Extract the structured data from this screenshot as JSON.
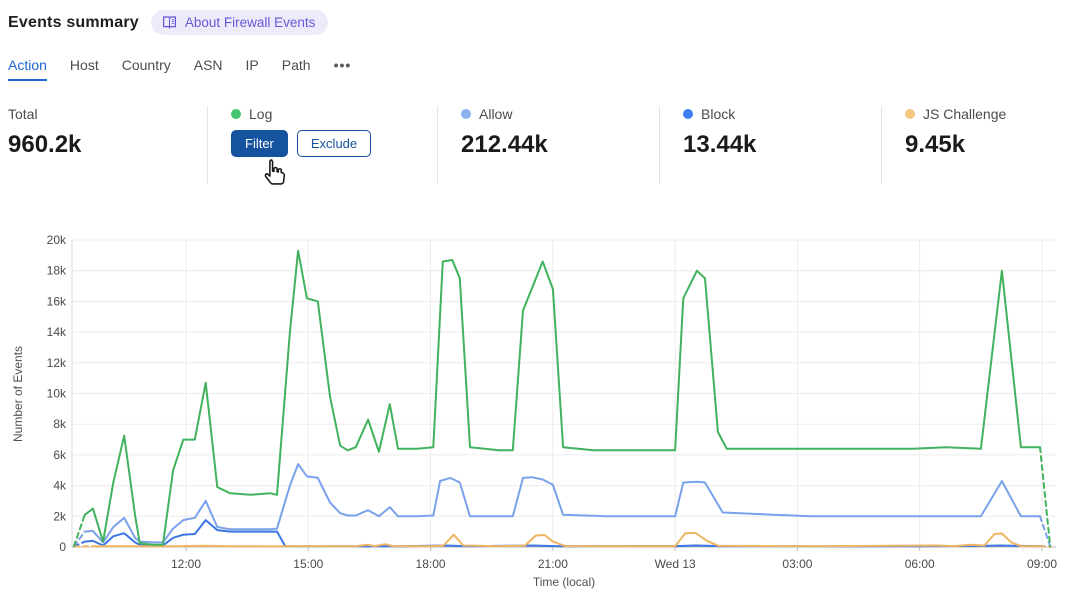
{
  "header": {
    "title": "Events summary",
    "about_label": "About Firewall Events"
  },
  "tabs": {
    "items": [
      "Action",
      "Host",
      "Country",
      "ASN",
      "IP",
      "Path"
    ],
    "active": "Action",
    "overflow": "•••"
  },
  "stats": {
    "total": {
      "label": "Total",
      "value": "960.2k"
    },
    "cards": [
      {
        "name": "Log",
        "color": "#46c46e",
        "hovered": true,
        "actions": {
          "filter": "Filter",
          "exclude": "Exclude"
        }
      },
      {
        "name": "Allow",
        "color": "#8ab2ef",
        "value": "212.44k"
      },
      {
        "name": "Block",
        "color": "#3b82f0",
        "value": "13.44k"
      },
      {
        "name": "JS Challenge",
        "color": "#f5c67e",
        "value": "9.45k"
      }
    ]
  },
  "colors": {
    "accent_blue": "#16539e",
    "tab_active": "#2065d1",
    "badge_purple": "#6459d6"
  },
  "chart_data": {
    "type": "line",
    "title": "",
    "xlabel": "Time (local)",
    "ylabel": "Number of Events",
    "x_unit": "minutes after Tue 09:00 (local); data interval ≈ 15 min",
    "y_unit": "thousands of events (k)",
    "ylim_k": [
      0,
      20
    ],
    "grid": true,
    "legend_position": "stat-cards-above",
    "dashed_edges": "first and last segment of each series are dashed (partial intervals)",
    "y_ticks": [
      {
        "label": "0",
        "v": 0
      },
      {
        "label": "2k",
        "v": 2
      },
      {
        "label": "4k",
        "v": 4
      },
      {
        "label": "6k",
        "v": 6
      },
      {
        "label": "8k",
        "v": 8
      },
      {
        "label": "10k",
        "v": 10
      },
      {
        "label": "12k",
        "v": 12
      },
      {
        "label": "14k",
        "v": 14
      },
      {
        "label": "16k",
        "v": 16
      },
      {
        "label": "18k",
        "v": 18
      },
      {
        "label": "20k",
        "v": 20
      }
    ],
    "x_ticks": [
      {
        "label": "12:00",
        "min": 180
      },
      {
        "label": "15:00",
        "min": 360
      },
      {
        "label": "18:00",
        "min": 540
      },
      {
        "label": "21:00",
        "min": 720
      },
      {
        "label": "Wed 13",
        "min": 900
      },
      {
        "label": "03:00",
        "min": 1080
      },
      {
        "label": "06:00",
        "min": 1260
      },
      {
        "label": "09:00",
        "min": 1440
      }
    ],
    "series": [
      {
        "name": "Log",
        "color": "#41b25d",
        "z": 4,
        "points_min_k": [
          [
            15,
            0.05
          ],
          [
            31,
            2.1
          ],
          [
            43,
            2.5
          ],
          [
            58,
            0.35
          ],
          [
            73,
            4.2
          ],
          [
            89,
            7.25
          ],
          [
            105,
            2.1
          ],
          [
            112,
            0.25
          ],
          [
            130,
            0.15
          ],
          [
            146,
            0.15
          ],
          [
            161,
            5.0
          ],
          [
            176,
            7.0
          ],
          [
            193,
            7.0
          ],
          [
            209,
            10.7
          ],
          [
            226,
            3.9
          ],
          [
            245,
            3.5
          ],
          [
            275,
            3.4
          ],
          [
            304,
            3.5
          ],
          [
            314,
            3.4
          ],
          [
            333,
            14.0
          ],
          [
            345,
            19.3
          ],
          [
            358,
            16.2
          ],
          [
            374,
            16.0
          ],
          [
            392,
            9.8
          ],
          [
            407,
            6.6
          ],
          [
            418,
            6.3
          ],
          [
            430,
            6.5
          ],
          [
            448,
            8.3
          ],
          [
            464,
            6.2
          ],
          [
            480,
            9.3
          ],
          [
            492,
            6.4
          ],
          [
            520,
            6.4
          ],
          [
            544,
            6.5
          ],
          [
            558,
            18.6
          ],
          [
            572,
            18.7
          ],
          [
            583,
            17.5
          ],
          [
            598,
            6.5
          ],
          [
            620,
            6.4
          ],
          [
            640,
            6.3
          ],
          [
            661,
            6.3
          ],
          [
            676,
            15.4
          ],
          [
            705,
            18.6
          ],
          [
            720,
            16.8
          ],
          [
            735,
            6.5
          ],
          [
            780,
            6.3
          ],
          [
            840,
            6.3
          ],
          [
            900,
            6.3
          ],
          [
            912,
            16.2
          ],
          [
            932,
            18.0
          ],
          [
            944,
            17.5
          ],
          [
            963,
            7.5
          ],
          [
            976,
            6.4
          ],
          [
            1050,
            6.4
          ],
          [
            1150,
            6.4
          ],
          [
            1250,
            6.4
          ],
          [
            1299,
            6.5
          ],
          [
            1350,
            6.4
          ],
          [
            1381,
            18.0
          ],
          [
            1409,
            6.5
          ],
          [
            1437,
            6.5
          ],
          [
            1452,
            0.05
          ]
        ]
      },
      {
        "name": "Allow",
        "color": "#7aa2ea",
        "z": 1,
        "points_min_k": [
          [
            15,
            0.05
          ],
          [
            31,
            1.0
          ],
          [
            43,
            1.05
          ],
          [
            58,
            0.3
          ],
          [
            73,
            1.3
          ],
          [
            89,
            1.9
          ],
          [
            105,
            0.6
          ],
          [
            112,
            0.35
          ],
          [
            130,
            0.3
          ],
          [
            146,
            0.3
          ],
          [
            161,
            1.2
          ],
          [
            176,
            1.75
          ],
          [
            193,
            1.9
          ],
          [
            209,
            3.0
          ],
          [
            226,
            1.3
          ],
          [
            245,
            1.15
          ],
          [
            304,
            1.15
          ],
          [
            314,
            1.2
          ],
          [
            333,
            4.0
          ],
          [
            345,
            5.4
          ],
          [
            358,
            4.6
          ],
          [
            374,
            4.5
          ],
          [
            392,
            2.9
          ],
          [
            407,
            2.2
          ],
          [
            418,
            2.05
          ],
          [
            430,
            2.05
          ],
          [
            448,
            2.4
          ],
          [
            464,
            2.0
          ],
          [
            480,
            2.6
          ],
          [
            492,
            2.0
          ],
          [
            520,
            2.0
          ],
          [
            544,
            2.05
          ],
          [
            554,
            4.3
          ],
          [
            569,
            4.5
          ],
          [
            583,
            4.2
          ],
          [
            598,
            2.0
          ],
          [
            640,
            2.0
          ],
          [
            661,
            2.0
          ],
          [
            676,
            4.5
          ],
          [
            689,
            4.55
          ],
          [
            705,
            4.4
          ],
          [
            720,
            4.05
          ],
          [
            735,
            2.1
          ],
          [
            800,
            2.0
          ],
          [
            900,
            2.0
          ],
          [
            912,
            4.2
          ],
          [
            932,
            4.25
          ],
          [
            944,
            4.2
          ],
          [
            970,
            2.25
          ],
          [
            1100,
            2.0
          ],
          [
            1250,
            2.0
          ],
          [
            1350,
            2.0
          ],
          [
            1381,
            4.3
          ],
          [
            1409,
            2.0
          ],
          [
            1437,
            2.0
          ],
          [
            1452,
            0.05
          ]
        ]
      },
      {
        "name": "Block",
        "color": "#3b76e3",
        "z": 2,
        "points_min_k": [
          [
            15,
            0.03
          ],
          [
            31,
            0.35
          ],
          [
            43,
            0.4
          ],
          [
            58,
            0.1
          ],
          [
            73,
            0.7
          ],
          [
            89,
            0.9
          ],
          [
            105,
            0.3
          ],
          [
            112,
            0.15
          ],
          [
            130,
            0.1
          ],
          [
            146,
            0.1
          ],
          [
            161,
            0.6
          ],
          [
            176,
            0.8
          ],
          [
            193,
            0.85
          ],
          [
            209,
            1.75
          ],
          [
            226,
            1.1
          ],
          [
            245,
            1.0
          ],
          [
            304,
            1.0
          ],
          [
            314,
            1.0
          ],
          [
            326,
            0.06
          ],
          [
            400,
            0.05
          ],
          [
            500,
            0.05
          ],
          [
            560,
            0.1
          ],
          [
            600,
            0.05
          ],
          [
            690,
            0.1
          ],
          [
            730,
            0.05
          ],
          [
            900,
            0.06
          ],
          [
            930,
            0.1
          ],
          [
            970,
            0.06
          ],
          [
            1100,
            0.05
          ],
          [
            1250,
            0.05
          ],
          [
            1350,
            0.07
          ],
          [
            1381,
            0.1
          ],
          [
            1409,
            0.07
          ],
          [
            1437,
            0.06
          ],
          [
            1452,
            0.02
          ]
        ]
      },
      {
        "name": "JS Challenge",
        "color": "#f0b563",
        "z": 3,
        "points_min_k": [
          [
            15,
            0.03
          ],
          [
            43,
            0.05
          ],
          [
            89,
            0.06
          ],
          [
            146,
            0.04
          ],
          [
            209,
            0.08
          ],
          [
            245,
            0.05
          ],
          [
            314,
            0.04
          ],
          [
            345,
            0.06
          ],
          [
            392,
            0.05
          ],
          [
            430,
            0.05
          ],
          [
            446,
            0.15
          ],
          [
            458,
            0.06
          ],
          [
            473,
            0.18
          ],
          [
            485,
            0.06
          ],
          [
            540,
            0.05
          ],
          [
            559,
            0.1
          ],
          [
            574,
            0.8
          ],
          [
            588,
            0.1
          ],
          [
            640,
            0.05
          ],
          [
            679,
            0.1
          ],
          [
            695,
            0.75
          ],
          [
            708,
            0.78
          ],
          [
            720,
            0.35
          ],
          [
            738,
            0.06
          ],
          [
            800,
            0.05
          ],
          [
            900,
            0.05
          ],
          [
            915,
            0.9
          ],
          [
            930,
            0.92
          ],
          [
            947,
            0.4
          ],
          [
            964,
            0.08
          ],
          [
            1100,
            0.05
          ],
          [
            1287,
            0.1
          ],
          [
            1310,
            0.06
          ],
          [
            1335,
            0.15
          ],
          [
            1355,
            0.1
          ],
          [
            1370,
            0.85
          ],
          [
            1381,
            0.88
          ],
          [
            1395,
            0.3
          ],
          [
            1409,
            0.06
          ],
          [
            1437,
            0.05
          ],
          [
            1452,
            0.02
          ]
        ]
      }
    ]
  }
}
